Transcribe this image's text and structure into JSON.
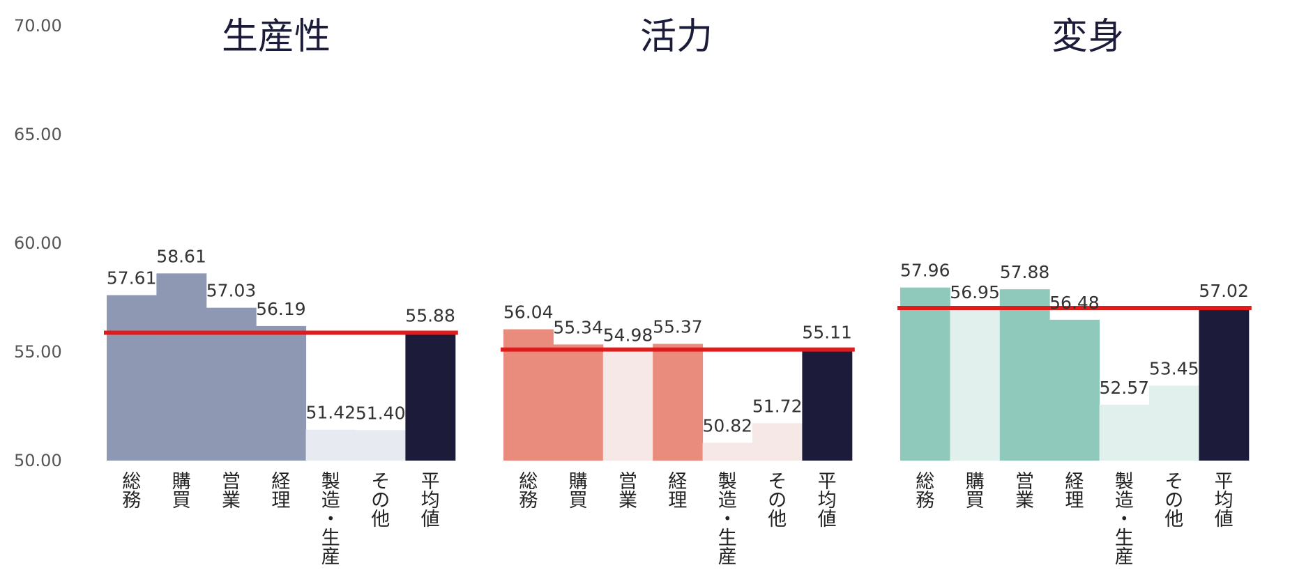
{
  "chart_data": {
    "type": "bar",
    "ylim": [
      50,
      70
    ],
    "yticks": [
      "70.00",
      "65.00",
      "60.00",
      "55.00",
      "50.00"
    ],
    "panels": [
      {
        "title": "生産性",
        "categories": [
          "総務",
          "購買",
          "営業",
          "経理",
          "製造・生産",
          "その他",
          "平均値"
        ],
        "values": [
          57.61,
          58.61,
          57.03,
          56.19,
          51.42,
          51.4,
          55.88
        ],
        "value_labels": [
          "57.61",
          "58.61",
          "57.03",
          "56.19",
          "51.42",
          "51.40",
          "55.88"
        ],
        "bar_colors": [
          "#8e98b3",
          "#8e98b3",
          "#8e98b3",
          "#8e98b3",
          "#e7ebf1",
          "#e7ebf1",
          "#1c1c3a"
        ],
        "average_line": 55.88
      },
      {
        "title": "活力",
        "categories": [
          "総務",
          "購買",
          "営業",
          "経理",
          "製造・生産",
          "その他",
          "平均値"
        ],
        "values": [
          56.04,
          55.34,
          54.98,
          55.37,
          50.82,
          51.72,
          55.11
        ],
        "value_labels": [
          "56.04",
          "55.34",
          "54.98",
          "55.37",
          "50.82",
          "51.72",
          "55.11"
        ],
        "bar_colors": [
          "#e98c7d",
          "#e98c7d",
          "#f6e8e6",
          "#e98c7d",
          "#f6e8e6",
          "#f6e8e6",
          "#1c1c3a"
        ],
        "average_line": 55.11
      },
      {
        "title": "変身",
        "categories": [
          "総務",
          "購買",
          "営業",
          "経理",
          "製造・生産",
          "その他",
          "平均値"
        ],
        "values": [
          57.96,
          56.95,
          57.88,
          56.48,
          52.57,
          53.45,
          57.02
        ],
        "value_labels": [
          "57.96",
          "56.95",
          "57.88",
          "56.48",
          "52.57",
          "53.45",
          "57.02"
        ],
        "bar_colors": [
          "#8ec9bc",
          "#e1f0ec",
          "#8ec9bc",
          "#8ec9bc",
          "#e1f0ec",
          "#e1f0ec",
          "#1c1c3a"
        ],
        "average_line": 57.02
      }
    ],
    "average_line_color": "#e01b1b"
  }
}
